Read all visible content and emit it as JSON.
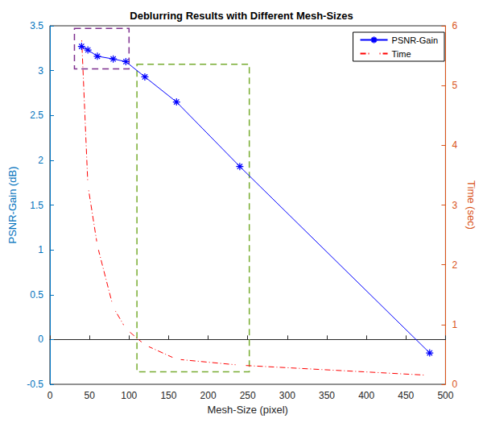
{
  "chart_data": {
    "type": "line",
    "title": "Deblurring Results with Different Mesh-Sizes",
    "x_label": "Mesh-Size (pixel)",
    "y_label": "PSNR-Gain (dB)",
    "y2_label": "Time (sec)",
    "x": [
      40,
      48,
      60,
      80,
      96,
      120,
      160,
      240,
      480
    ],
    "series": [
      {
        "name": "PSNR-Gain",
        "color": "#0000ff",
        "marker": "asterisk",
        "line_style": "solid",
        "values": [
          3.27,
          3.23,
          3.16,
          3.13,
          3.1,
          2.93,
          2.65,
          1.93,
          -0.15
        ]
      },
      {
        "name": "Time",
        "color": "#ff0000",
        "marker": "circle",
        "line_style": "dashdot",
        "axis": "y2",
        "values": [
          5.83,
          3.33,
          2.32,
          1.29,
          0.93,
          0.66,
          0.42,
          0.32,
          0.15
        ]
      }
    ],
    "xlim": [
      0,
      500
    ],
    "xticks": [
      0,
      50,
      100,
      150,
      200,
      250,
      300,
      350,
      400,
      450,
      500
    ],
    "ylim": [
      -0.5,
      3.5
    ],
    "yticks": [
      -0.5,
      0,
      0.5,
      1,
      1.5,
      2,
      2.5,
      3,
      3.5
    ],
    "y2lim": [
      0,
      6
    ],
    "y2ticks": [
      0,
      1,
      2,
      3,
      4,
      5,
      6
    ],
    "boxes": [
      {
        "xlim": [
          31,
          100
        ],
        "ylim": [
          3.02,
          3.47
        ],
        "color": "#7e2f8e"
      },
      {
        "xlim": [
          110,
          252
        ],
        "ylim": [
          -0.36,
          3.07
        ],
        "color": "#77ac30"
      }
    ],
    "grid": false,
    "legend": "upper right"
  }
}
